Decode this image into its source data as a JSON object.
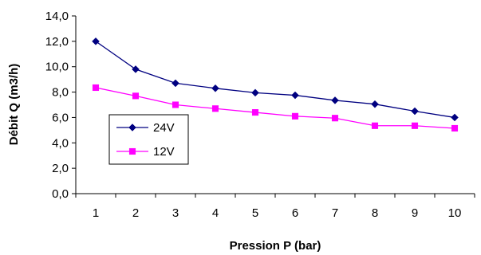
{
  "chart_data": {
    "type": "line",
    "x": [
      1,
      2,
      3,
      4,
      5,
      6,
      7,
      8,
      9,
      10
    ],
    "x_tick_labels": [
      "1",
      "2",
      "3",
      "4",
      "5",
      "6",
      "7",
      "8",
      "9",
      "10"
    ],
    "y_tick_labels": [
      "0,0",
      "2,0",
      "4,0",
      "6,0",
      "8,0",
      "10,0",
      "12,0",
      "14,0"
    ],
    "ylim": [
      0,
      14
    ],
    "xlabel": "Pression P (bar)",
    "ylabel": "Débit Q (m3/h)",
    "grid": false,
    "legend_position": "left-center",
    "series": [
      {
        "name": "24V",
        "color": "#000080",
        "marker": "diamond",
        "values": [
          12.0,
          9.8,
          8.7,
          8.3,
          7.95,
          7.75,
          7.35,
          7.05,
          6.5,
          6.0
        ]
      },
      {
        "name": "12V",
        "color": "#ff00ff",
        "marker": "square",
        "values": [
          8.35,
          7.7,
          7.0,
          6.7,
          6.4,
          6.1,
          5.95,
          5.35,
          5.35,
          5.15
        ]
      }
    ]
  }
}
